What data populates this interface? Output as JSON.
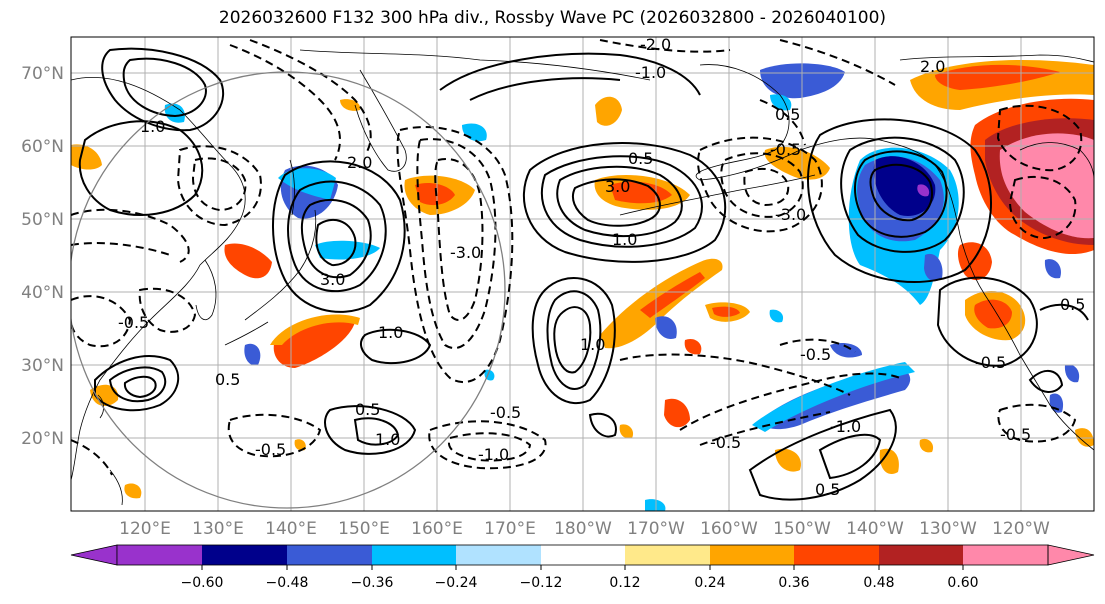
{
  "title": "2026032600 F132 300 hPa div., Rossby Wave PC (2026032800 - 2026040100)",
  "map": {
    "lat_labels": [
      "70°N",
      "60°N",
      "50°N",
      "40°N",
      "30°N",
      "20°N"
    ],
    "lon_labels": [
      "120°E",
      "130°E",
      "140°E",
      "150°E",
      "160°E",
      "170°E",
      "180°W",
      "170°W",
      "160°W",
      "150°W",
      "140°W",
      "130°W",
      "120°W"
    ],
    "contour_labels": [
      "3.0",
      "2.0",
      "1.0",
      "0.5",
      "-0.5",
      "-1.0",
      "-2.0",
      "-3.0",
      "1.0",
      "0.5",
      "-0.5",
      "3.0",
      "1.0",
      "-0.5",
      "-1.0",
      "-0.5",
      "1.0",
      "0.5",
      "-0.5",
      "-3.0",
      "-0.5",
      "0.5",
      "-0.5",
      "2.0",
      "-1.0",
      "0.5",
      "1.0",
      "0.5",
      "-0.5"
    ]
  },
  "colorbar": {
    "ticks": [
      "−0.60",
      "−0.48",
      "−0.36",
      "−0.24",
      "−0.12",
      "0.12",
      "0.24",
      "0.36",
      "0.48",
      "0.60"
    ],
    "colors": [
      "#9932cc",
      "#00008b",
      "#3a5bd6",
      "#00bfff",
      "#b0e2ff",
      "#ffffff",
      "#ffe98a",
      "#ffa500",
      "#ff4500",
      "#b22222",
      "#ff88aa"
    ]
  },
  "colors": {
    "grid": "#b0b0b0",
    "coast": "#000000",
    "tick_text": "#808080"
  }
}
